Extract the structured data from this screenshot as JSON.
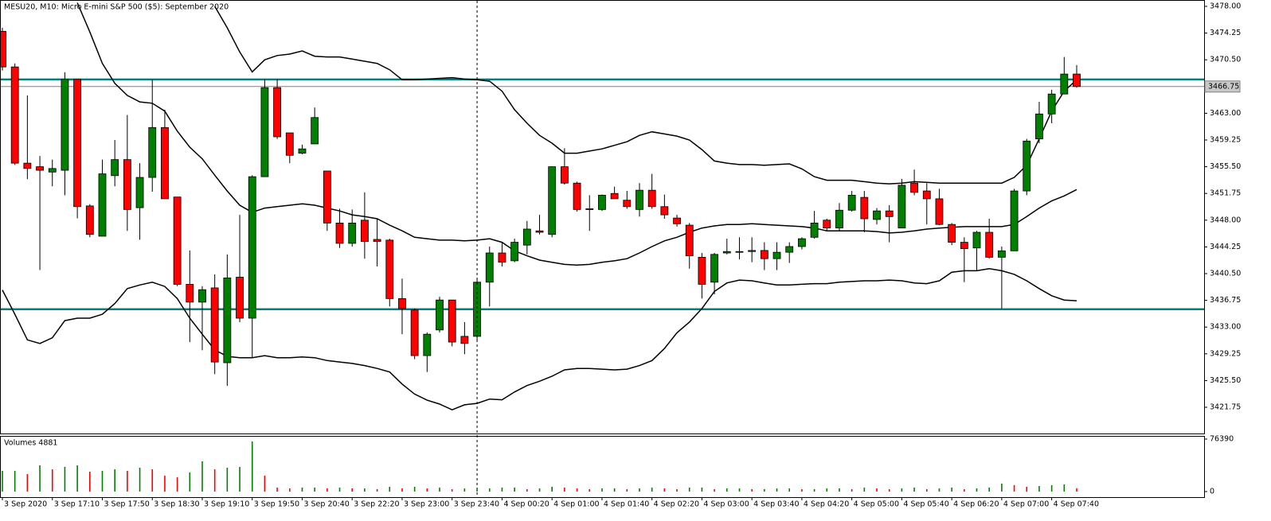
{
  "chart_data": {
    "type": "candlestick",
    "title": "MESU20, M10:  Micro E-mini S&P 500 ($5): September 2020",
    "volume_label": "Volumes 4881",
    "categories": [
      "3 Sep 2020",
      null,
      null,
      null,
      "3 Sep 17:10",
      null,
      null,
      null,
      "3 Sep 17:50",
      null,
      null,
      null,
      "3 Sep 18:30",
      null,
      null,
      null,
      "3 Sep 19:10",
      null,
      null,
      null,
      "3 Sep 19:50",
      null,
      null,
      null,
      "3 Sep 20:40",
      null,
      null,
      null,
      "3 Sep 22:20",
      null,
      null,
      null,
      "3 Sep 23:00",
      null,
      null,
      null,
      "3 Sep 23:40",
      null,
      null,
      null,
      "4 Sep 00:20",
      null,
      null,
      null,
      "4 Sep 01:00",
      null,
      null,
      null,
      "4 Sep 01:40",
      null,
      null,
      null,
      "4 Sep 02:20",
      null,
      null,
      null,
      "4 Sep 03:00",
      null,
      null,
      null,
      "4 Sep 03:40",
      null,
      null,
      null,
      "4 Sep 04:20",
      null,
      null,
      null,
      "4 Sep 05:00",
      null,
      null,
      null,
      "4 Sep 05:40",
      null,
      null,
      null,
      "4 Sep 06:20",
      null,
      null,
      null,
      "4 Sep 07:00",
      null,
      null,
      null,
      "4 Sep 07:40",
      null,
      null
    ],
    "open": [
      3474.5,
      3469.5,
      3456.0,
      3455.5,
      3454.75,
      3455,
      3467.75,
      3450,
      3445.75,
      3454.25,
      3456.5,
      3449.75,
      3454,
      3461,
      3451.25,
      3439,
      3436.5,
      3438.5,
      3428,
      3440,
      3434.25,
      3454.1,
      3466.6,
      3460.25,
      3457.4,
      3458.7,
      3454.9,
      3447.6,
      3444.75,
      3448,
      3445.3,
      3445.2,
      3437,
      3435.4,
      3429,
      3432.6,
      3436.8,
      3431.7,
      3431.7,
      3439.3,
      3443.4,
      3442.3,
      3444.5,
      3446.5,
      3446,
      3455.5,
      3453.2,
      3449.6,
      3449.5,
      3451.75,
      3450.8,
      3449.5,
      3452.2,
      3449.9,
      3448.3,
      3447.3,
      3442.8,
      3439.3,
      3443.4,
      3443.5,
      3443.75,
      3443.75,
      3442.6,
      3443.5,
      3444.3,
      3445.6,
      3448,
      3446.9,
      3449.4,
      3451.2,
      3448.1,
      3449.3,
      3446.9,
      3453.2,
      3452.1,
      3451,
      3447.4,
      3444.9,
      3444.1,
      3446.3,
      3442.8,
      3443.7,
      3452.1,
      3459.4,
      3462.9,
      3465.7,
      3468.5
    ],
    "high": [
      3475,
      3470,
      3465.5,
      3457,
      3456.5,
      3468.75,
      3467.75,
      3450.25,
      3456.5,
      3459.25,
      3462.75,
      3456,
      3467.75,
      3463.5,
      3451.25,
      3443.75,
      3438.75,
      3440.4,
      3443.2,
      3448.75,
      3454.3,
      3467.75,
      3467.75,
      3460.25,
      3458.6,
      3463.8,
      3454.9,
      3449.6,
      3449.5,
      3451.9,
      3448.2,
      3445.4,
      3439.8,
      3435.6,
      3432.25,
      3437.25,
      3436.8,
      3433.7,
      3439.8,
      3444.3,
      3444.9,
      3445.4,
      3447.9,
      3448.75,
      3455.5,
      3458.1,
      3453.4,
      3451.5,
      3451.6,
      3452.7,
      3452.1,
      3453.2,
      3454.5,
      3451.6,
      3448.75,
      3447.6,
      3443.4,
      3443.4,
      3445.4,
      3445.6,
      3445.6,
      3444.9,
      3444.9,
      3444.9,
      3445.6,
      3449.3,
      3448.2,
      3450.4,
      3452.1,
      3452.1,
      3449.7,
      3450.1,
      3453.8,
      3455.1,
      3453.2,
      3452.4,
      3447.6,
      3445.6,
      3446.5,
      3448.2,
      3444.3,
      3452.4,
      3459.4,
      3464.6,
      3466.3,
      3470.9,
      3469.75
    ],
    "low": [
      3469,
      3455.75,
      3453.75,
      3441,
      3452.75,
      3451.5,
      3448.25,
      3445.6,
      3445.75,
      3452.75,
      3446.5,
      3445.25,
      3452,
      3451,
      3438.75,
      3430.9,
      3429.75,
      3426.4,
      3424.75,
      3433.7,
      3428.7,
      3454.1,
      3459.4,
      3456,
      3457.25,
      3458.7,
      3446.5,
      3444.1,
      3444.3,
      3442.6,
      3441.5,
      3435.9,
      3432,
      3428.5,
      3426.7,
      3432.25,
      3430.3,
      3429.2,
      3431.1,
      3435.9,
      3441.5,
      3442.1,
      3443.2,
      3446,
      3445.6,
      3453,
      3449.2,
      3446.5,
      3449.3,
      3451,
      3449.6,
      3448.5,
      3449.6,
      3448.2,
      3447.1,
      3441.2,
      3437,
      3437.6,
      3443.2,
      3442.5,
      3442.1,
      3441,
      3441,
      3442,
      3443.9,
      3445.4,
      3446.5,
      3446.5,
      3449.2,
      3446.3,
      3447.4,
      3444.9,
      3446.9,
      3451.5,
      3447.4,
      3447.3,
      3444.5,
      3439.3,
      3441,
      3442.6,
      3435.6,
      3443.7,
      3451.5,
      3458.8,
      3461.6,
      3465.7,
      3466.6
    ],
    "close": [
      3469.5,
      3456.0,
      3455.25,
      3455,
      3455.25,
      3467.75,
      3449.9,
      3446,
      3454.5,
      3456.5,
      3449.5,
      3454,
      3461,
      3451,
      3439,
      3436.5,
      3438.25,
      3428.1,
      3439.9,
      3434.25,
      3454.1,
      3466.6,
      3459.7,
      3457.1,
      3458,
      3462.4,
      3447.6,
      3444.75,
      3447.6,
      3445,
      3445,
      3437,
      3435.6,
      3429,
      3432,
      3436.8,
      3430.9,
      3430.7,
      3439.3,
      3443.4,
      3442.1,
      3444.9,
      3446.75,
      3446.3,
      3455.5,
      3453.2,
      3449.5,
      3449.5,
      3451.5,
      3451,
      3449.9,
      3452.2,
      3449.9,
      3448.75,
      3447.5,
      3443,
      3439,
      3443.2,
      3443.6,
      3443.6,
      3443.6,
      3442.6,
      3443.5,
      3444.3,
      3445.4,
      3447.6,
      3446.9,
      3449.4,
      3451.5,
      3448.2,
      3449.3,
      3448.5,
      3452.9,
      3451.9,
      3451,
      3447.4,
      3444.9,
      3444,
      3446.3,
      3442.8,
      3443.7,
      3452.1,
      3459.1,
      3462.9,
      3465.7,
      3468.5,
      3466.75
    ],
    "volume": [
      30100,
      30100,
      25500,
      38200,
      32400,
      35900,
      38200,
      28900,
      30100,
      32400,
      30100,
      34700,
      32400,
      23100,
      20800,
      27800,
      44000,
      32400,
      34700,
      35900,
      72900,
      23100,
      5800,
      4600,
      5800,
      5800,
      4600,
      5800,
      4600,
      4600,
      3500,
      6900,
      4600,
      6900,
      4600,
      5800,
      3500,
      4600,
      4600,
      4600,
      5800,
      5800,
      3500,
      4600,
      6900,
      5800,
      4600,
      3500,
      4600,
      4600,
      3500,
      4600,
      5800,
      4600,
      3500,
      5800,
      5800,
      3500,
      4600,
      4600,
      3500,
      3500,
      4600,
      4600,
      3500,
      3500,
      4600,
      4600,
      3500,
      5800,
      4600,
      3500,
      4600,
      5800,
      3500,
      4600,
      5800,
      3500,
      4600,
      5800,
      11600,
      9300,
      6900,
      8100,
      9300,
      10400,
      4881
    ],
    "bands": [
      {
        "color": "#000000",
        "values": [
          null,
          null,
          null,
          null,
          null,
          null,
          null,
          null,
          null,
          null,
          null,
          null,
          null,
          null,
          null,
          null,
          null,
          3478,
          3475,
          3471.6,
          3468.8,
          3470.5,
          3471.1,
          3471.3,
          3471.75,
          3471,
          3470.9,
          3470.9,
          3470.6,
          3470.3,
          3470,
          3469.1,
          3467.7,
          3467.7,
          3467.8,
          3467.9,
          3468,
          3467.8,
          3467.7,
          3467.5,
          3466.1,
          3463.5,
          3461.6,
          3459.9,
          3458.8,
          3457.4,
          3457.4,
          3457.7,
          3458,
          3458.5,
          3459,
          3459.9,
          3460.4,
          3460.1,
          3459.8,
          3459.25,
          3457.9,
          3456.3,
          3456,
          3455.8,
          3455.8,
          3455.7,
          3455.8,
          3455.9,
          3455.2,
          3454.1,
          3453.6,
          3453.6,
          3453.6,
          3453.4,
          3453.2,
          3453.1,
          3453.2,
          3453.4,
          3453.3,
          3453.2,
          3453.2,
          3453.2,
          3453.2,
          3453.2,
          3453.2,
          3454,
          3455.7,
          3459.4,
          3463.3,
          3466.1,
          3467.7
        ]
      },
      {
        "color": "#000000",
        "values": [
          null,
          null,
          null,
          null,
          null,
          null,
          3478.5,
          3474.4,
          3470,
          3467.2,
          3465.5,
          3464.6,
          3464.4,
          3463.3,
          3460.5,
          3458.25,
          3456.6,
          3454.3,
          3452.1,
          3450.1,
          3449.1,
          3449.7,
          3449.9,
          3450.1,
          3450.3,
          3450.1,
          3449.7,
          3449.3,
          3448.75,
          3448.5,
          3448.2,
          3447.3,
          3446.5,
          3445.6,
          3445.4,
          3445.2,
          3445.2,
          3445.1,
          3445.2,
          3445.4,
          3444.9,
          3443.7,
          3443,
          3442.4,
          3442.1,
          3441.8,
          3441.7,
          3441.8,
          3442.1,
          3442.3,
          3442.6,
          3443.4,
          3444.3,
          3445.1,
          3445.6,
          3446.3,
          3446.9,
          3447.2,
          3447.4,
          3447.4,
          3447.5,
          3447.4,
          3447.3,
          3447.2,
          3447.1,
          3446.9,
          3446.5,
          3446.5,
          3446.5,
          3446.5,
          3446.4,
          3446.2,
          3446.3,
          3446.5,
          3446.75,
          3446.9,
          3447,
          3447.1,
          3447.1,
          3447.1,
          3447.1,
          3447.4,
          3448.5,
          3449.7,
          3450.7,
          3451.4,
          3452.3
        ]
      },
      {
        "color": "#000000",
        "values": [
          3438.2,
          3434.8,
          3431.2,
          3430.7,
          3431.5,
          3433.9,
          3434.25,
          3434.25,
          3434.8,
          3436.3,
          3438.4,
          3438.9,
          3439.3,
          3438.7,
          3437,
          3434.25,
          3432,
          3429.8,
          3428.9,
          3428.7,
          3428.7,
          3429,
          3428.7,
          3428.7,
          3428.8,
          3428.7,
          3428.3,
          3428.1,
          3427.9,
          3427.6,
          3427.2,
          3426.7,
          3425,
          3423.6,
          3422.75,
          3422.2,
          3421.4,
          3422.1,
          3422.3,
          3422.9,
          3422.8,
          3423.9,
          3424.8,
          3425.4,
          3426.1,
          3427,
          3427.2,
          3427.2,
          3427.1,
          3427,
          3427.1,
          3427.6,
          3428.3,
          3430,
          3432.2,
          3433.7,
          3435.6,
          3438,
          3439.2,
          3439.6,
          3439.5,
          3439.2,
          3438.9,
          3438.9,
          3439,
          3439.1,
          3439.1,
          3439.3,
          3439.4,
          3439.5,
          3439.5,
          3439.6,
          3439.5,
          3439.2,
          3439.1,
          3439.5,
          3440.7,
          3440.9,
          3440.9,
          3441.2,
          3440.9,
          3440.4,
          3439.5,
          3438.4,
          3437.4,
          3436.8,
          3436.7
        ]
      }
    ],
    "hlines": [
      {
        "value": 3467.75,
        "color": "#008080"
      },
      {
        "value": 3435.5,
        "color": "#008080"
      }
    ],
    "vertical_line_index": 38,
    "last_price": {
      "value": 3466.75,
      "label": "3466.75"
    },
    "up_color": "#008000",
    "down_color": "#ff0000",
    "ylim": [
      3418.07,
      3478.89
    ],
    "yticks": [
      {
        "value": 3478,
        "label": "3478.00"
      },
      {
        "value": 3474.25,
        "label": "3474.25"
      },
      {
        "value": 3470.5,
        "label": "3470.50"
      },
      {
        "value": 3463,
        "label": "3463.00"
      },
      {
        "value": 3459.25,
        "label": "3459.25"
      },
      {
        "value": 3455.5,
        "label": "3455.50"
      },
      {
        "value": 3451.75,
        "label": "3451.75"
      },
      {
        "value": 3448,
        "label": "3448.00"
      },
      {
        "value": 3444.25,
        "label": "3444.25"
      },
      {
        "value": 3440.5,
        "label": "3440.50"
      },
      {
        "value": 3436.75,
        "label": "3436.75"
      },
      {
        "value": 3433,
        "label": "3433.00"
      },
      {
        "value": 3429.25,
        "label": "3429.25"
      },
      {
        "value": 3425.5,
        "label": "3425.50"
      },
      {
        "value": 3421.75,
        "label": "3421.75"
      }
    ],
    "volume_ylim": [
      0,
      76390
    ],
    "volume_ticks": [
      0,
      76390
    ]
  }
}
